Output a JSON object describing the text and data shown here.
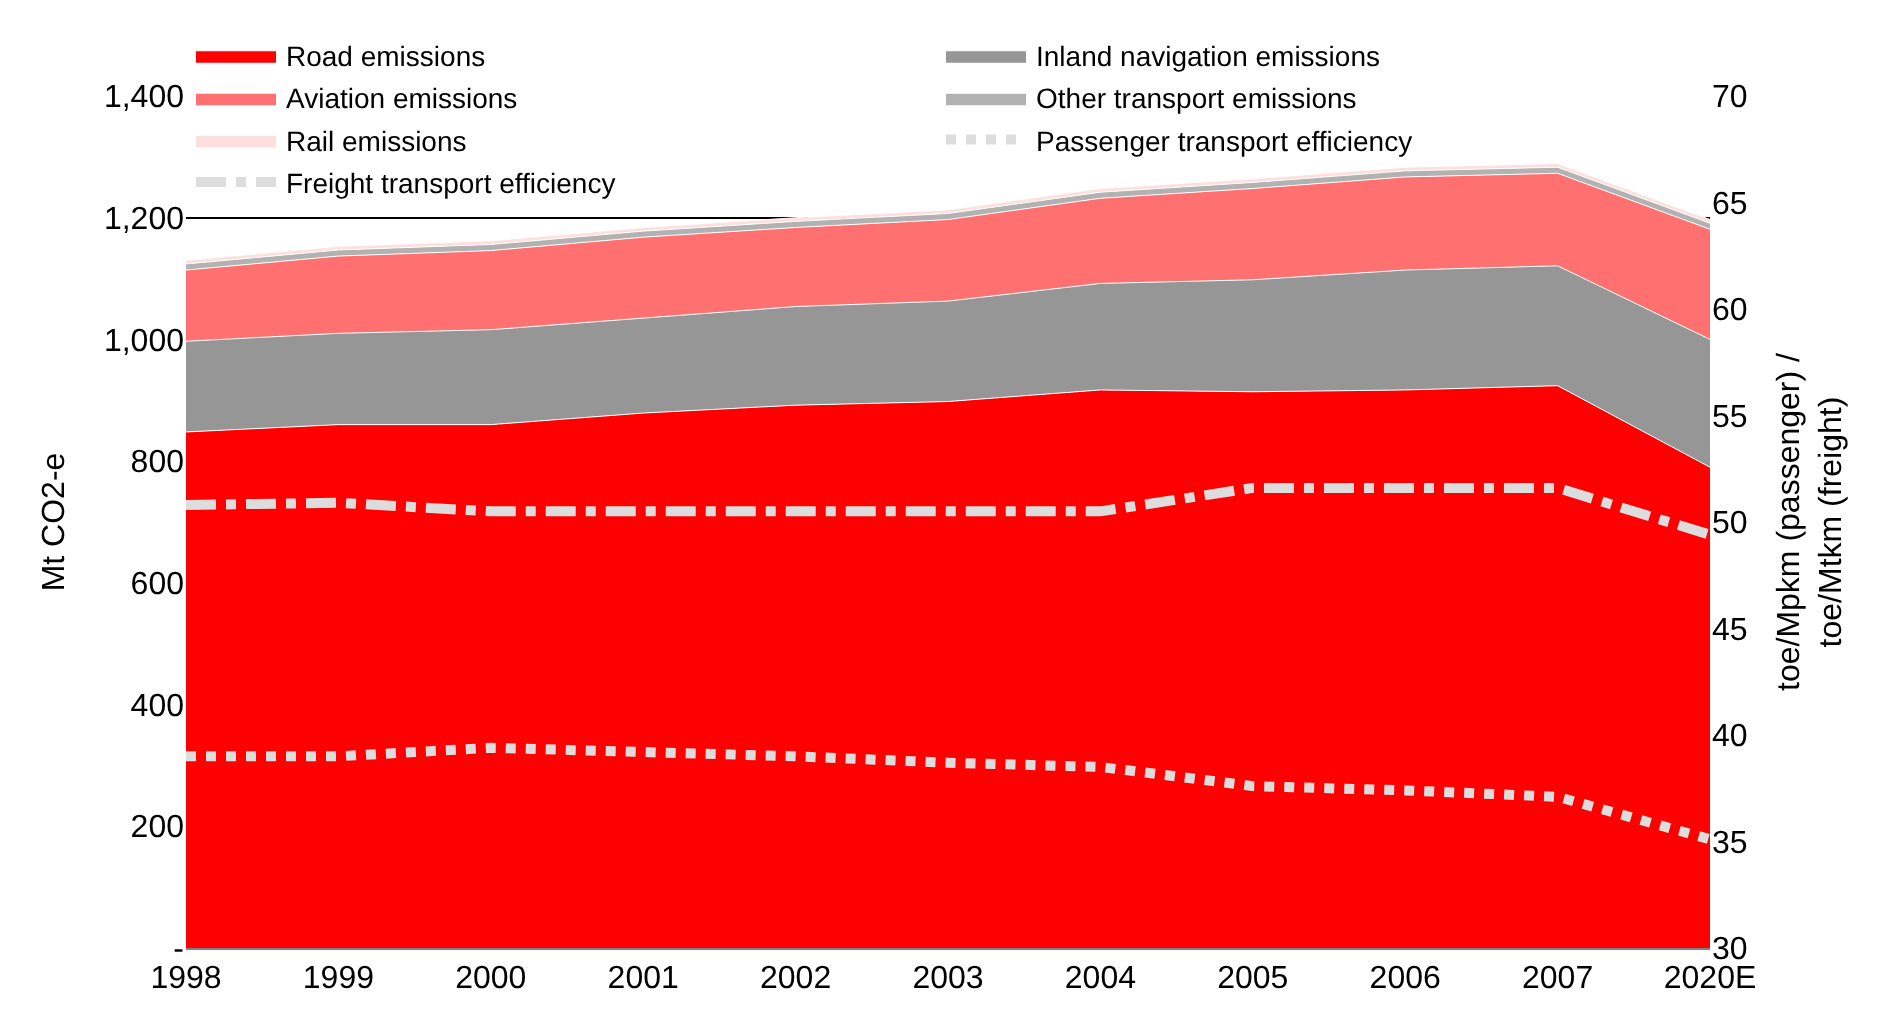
{
  "chart_data": {
    "type": "area",
    "stacked": true,
    "ylabel": "Mt CO2-e",
    "y2label": "toe/Mpkm (passenger) /\ntoe/Mtkm (freight)",
    "categories": [
      "1998",
      "1999",
      "2000",
      "2001",
      "2002",
      "2003",
      "2004",
      "2005",
      "2006",
      "2007",
      "2020E"
    ],
    "series": [
      {
        "name": "Road emissions",
        "color": "#ff0000",
        "values": [
          848,
          860,
          860,
          879,
          892,
          898,
          917,
          914,
          917,
          924,
          790
        ]
      },
      {
        "name": "Inland navigation emissions",
        "color": "#969696",
        "values": [
          149,
          150,
          156,
          156,
          162,
          165,
          175,
          184,
          197,
          197,
          210
        ]
      },
      {
        "name": "Aviation emissions",
        "color": "#ff7070",
        "values": [
          117,
          127,
          130,
          133,
          130,
          134,
          140,
          150,
          153,
          152,
          181
        ]
      },
      {
        "name": "Other transport emissions",
        "color": "#b2b2b2",
        "values": [
          10,
          10,
          10,
          10,
          10,
          10,
          10,
          10,
          10,
          10,
          10
        ]
      },
      {
        "name": "Rail emissions",
        "color": "#ffdede",
        "values": [
          6,
          6,
          6,
          6,
          6,
          6,
          6,
          6,
          6,
          6,
          6
        ]
      },
      {
        "name": "Passenger transport efficiency",
        "type": "line",
        "axis": "y2",
        "line_style": "dotted",
        "color": "#dddddd",
        "values": [
          39.0,
          39.0,
          39.4,
          39.2,
          39.0,
          38.7,
          38.5,
          37.6,
          37.4,
          37.1,
          35.1
        ]
      },
      {
        "name": "Freight transport efficiency",
        "type": "line",
        "axis": "y2",
        "line_style": "dashdot",
        "color": "#dddddd",
        "values": [
          50.8,
          50.9,
          50.5,
          50.5,
          50.5,
          50.5,
          50.5,
          51.6,
          51.6,
          51.6,
          49.4
        ]
      }
    ],
    "ylim": [
      0,
      1400
    ],
    "yticks": [
      {
        "value": 0,
        "label": "-"
      },
      200,
      400,
      600,
      800,
      {
        "value": 1000,
        "label": "1,000"
      },
      {
        "value": 1200,
        "label": "1,200"
      },
      {
        "value": 1400,
        "label": "1,400"
      }
    ],
    "y2lim": [
      30,
      70
    ],
    "y2ticks": [
      30,
      35,
      40,
      45,
      50,
      55,
      60,
      65,
      70
    ],
    "grid": "y",
    "legend": "top"
  }
}
